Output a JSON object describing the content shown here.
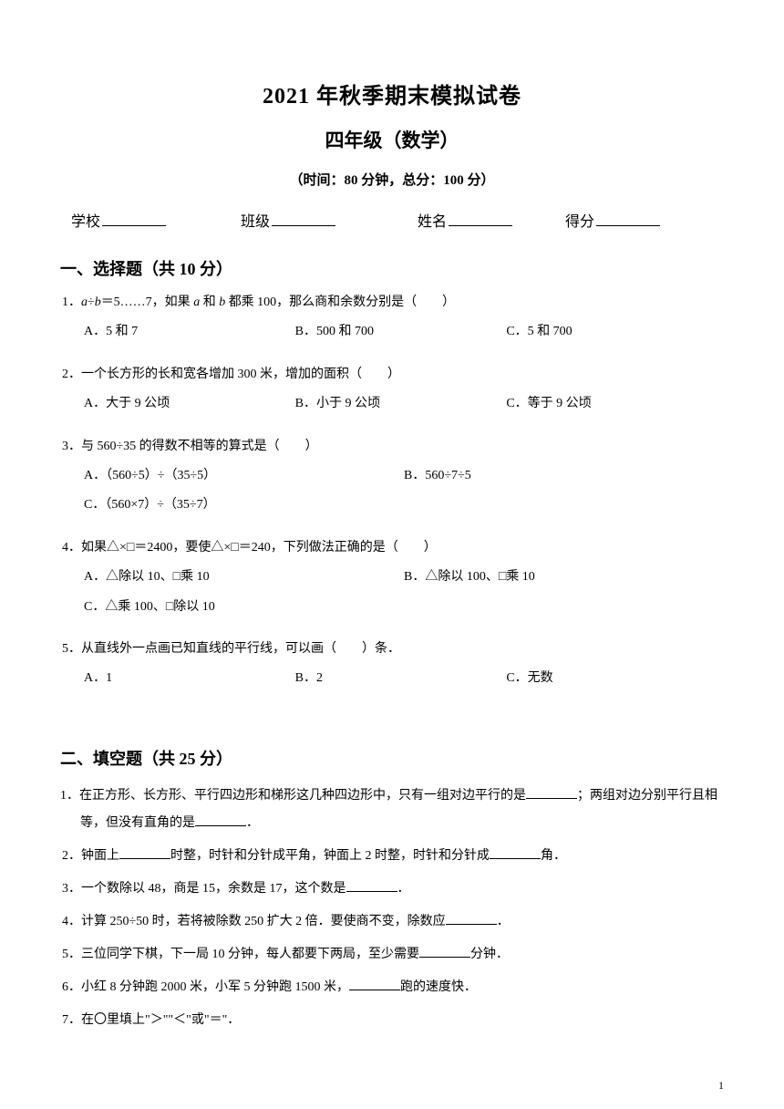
{
  "header": {
    "title_main": "2021  年秋季期末模拟试卷",
    "title_sub": "四年级（数学）",
    "exam_info": "（时间：80 分钟，总分：100 分）",
    "labels": {
      "school": "学校",
      "class": "班级",
      "name": "姓名",
      "score": "得分"
    }
  },
  "section1": {
    "header": "一、选择题（共 10 分）",
    "q1": {
      "text": "1．a÷b＝5……7，如果 a 和 b 都乘 100，那么商和余数分别是（　　）",
      "optA": "A．5 和 7",
      "optB": "B．500 和 700",
      "optC": "C．5 和 700"
    },
    "q2": {
      "text": "2．一个长方形的长和宽各增加 300 米，增加的面积（　　）",
      "optA": "A．大于 9 公顷",
      "optB": "B．小于 9 公顷",
      "optC": "C．等于 9 公顷"
    },
    "q3": {
      "text": "3．与 560÷35 的得数不相等的算式是（　　）",
      "optA": "A．（560÷5）÷（35÷5）",
      "optB": "B．560÷7÷5",
      "optC": "C．（560×7）÷（35÷7）"
    },
    "q4": {
      "text": "4．如果△×□＝2400，要使△×□＝240，下列做法正确的是（　　）",
      "optA": "A．△除以 10、□乘 10",
      "optB": "B．△除以 100、□乘 10",
      "optC": "C．△乘 100、□除以 10"
    },
    "q5": {
      "text": "5．从直线外一点画已知直线的平行线，可以画（　　）条．",
      "optA": "A．1",
      "optB": "B．2",
      "optC": "C．无数"
    }
  },
  "section2": {
    "header": "二、填空题（共 25 分）",
    "q1a": "1．在正方形、长方形、平行四边形和梯形这几种四边形中，只有一组对边平行的是",
    "q1b": "；两组对边分",
    "q1c": "别平行且相等，但没有直角的是",
    "q1d": "．",
    "q2a": "2．钟面上",
    "q2b": "时整，时针和分针成平角，钟面上 2 时整，时针和分针成",
    "q2c": "角．",
    "q3a": "3．一个数除以 48，商是 15，余数是 17，这个数是",
    "q3b": "．",
    "q4a": "4．计算 250÷50 时，若将被除数 250 扩大 2 倍．要使商不变，除数应",
    "q4b": "．",
    "q5a": "5．三位同学下棋，下一局 10 分钟，每人都要下两局，至少需要",
    "q5b": "分钟．",
    "q6a": "6．小红 8 分钟跑 2000 米，小军 5 分钟跑 1500 米，",
    "q6b": "跑的速度快．",
    "q7": "7．在〇里填上\"＞\"\"＜\"或\"＝\"．"
  },
  "page_number": "1"
}
